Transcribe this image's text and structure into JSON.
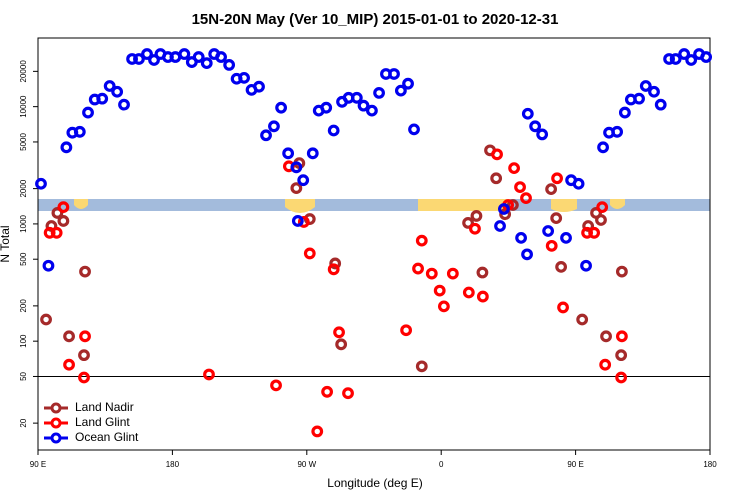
{
  "chart_data": {
    "type": "scatter",
    "title": "15N-20N May (Ver 10_MIP)   2015-01-01 to 2020-12-31",
    "x_label": "Longitude (deg E)",
    "y_label": "N Total",
    "log_y": true,
    "hline": 50,
    "legend": "bottom-left",
    "xlim": [
      90,
      540
    ],
    "ylim": [
      11.8,
      38500
    ],
    "xticks": [
      {
        "value": 90,
        "label": "90 E"
      },
      180,
      {
        "value": 270,
        "label": "90 W"
      },
      {
        "value": 360,
        "label": "0"
      },
      {
        "value": 450,
        "label": "90 E"
      },
      {
        "value": 540,
        "label": "180"
      }
    ],
    "yticks": [
      20,
      50,
      100,
      200,
      500,
      1000,
      2000,
      5000,
      10000,
      20000
    ],
    "series": [
      {
        "name": "Land Nadir",
        "color": "#a52a2a",
        "x": [
          95.4,
          99,
          103,
          107,
          110.8,
          120.8,
          121.5,
          263,
          265,
          272,
          289,
          293,
          347,
          378,
          383.6,
          387.6,
          392.7,
          396.8,
          402.8,
          408,
          433.6,
          437,
          440.3,
          454.4,
          458.4,
          463.7,
          467,
          470.4,
          480.5,
          481
        ],
        "values": [
          153,
          960,
          1240,
          1060,
          110,
          76,
          392,
          2020,
          3300,
          1100,
          460,
          94,
          61,
          1020,
          1170,
          385,
          4240,
          2450,
          1210,
          1450,
          1980,
          1120,
          430,
          153,
          960,
          1240,
          1080,
          110,
          76,
          392
        ]
      },
      {
        "name": "Land Glint",
        "color": "#ff0000",
        "x": [
          97.8,
          102.5,
          107,
          110.8,
          120.8,
          121.5,
          204.5,
          249.4,
          258,
          268,
          272,
          277,
          283.6,
          288,
          291.6,
          297.6,
          336.5,
          344.5,
          347,
          353.7,
          359,
          361.8,
          367.8,
          378.5,
          382.6,
          387.9,
          397.4,
          404.8,
          408.8,
          412.8,
          416.8,
          434,
          437.6,
          441.6,
          457.7,
          462.4,
          467.8,
          469.8,
          480.5,
          481
        ],
        "values": [
          840,
          840,
          1390,
          63,
          49,
          110,
          52,
          42,
          3100,
          1040,
          560,
          17,
          37,
          410,
          119,
          36,
          124,
          416,
          720,
          377,
          270,
          198,
          377,
          260,
          910,
          240,
          3920,
          1450,
          2990,
          2060,
          1660,
          650,
          2450,
          194,
          840,
          840,
          1390,
          63,
          49,
          110
        ]
      },
      {
        "name": "Ocean Glint",
        "color": "#0000ee",
        "x": [
          92,
          97,
          109,
          113,
          118,
          123.5,
          128,
          133,
          138,
          143,
          147.6,
          153,
          157.6,
          163,
          167.7,
          172,
          177,
          182,
          188,
          193,
          197.6,
          203,
          208,
          212.6,
          218,
          223,
          228,
          233,
          238,
          242.7,
          248,
          252.8,
          257.5,
          263,
          267.6,
          264,
          274,
          278,
          283,
          288,
          293.6,
          298,
          303.5,
          308,
          313.6,
          318.4,
          323,
          328.4,
          333,
          337.8,
          341.8,
          402,
          399.4,
          413.5,
          417.5,
          418,
          422.9,
          427.6,
          431.6,
          443.6,
          447,
          452,
          457,
          468.4,
          472.4,
          477.8,
          483,
          487,
          492.5,
          497,
          502.5,
          507,
          512.6,
          517,
          522.7,
          527.4,
          532.7,
          537.4
        ],
        "values": [
          2200,
          440,
          4500,
          6000,
          6100,
          8900,
          11500,
          11700,
          15000,
          13400,
          10400,
          25500,
          25500,
          28100,
          25000,
          28100,
          26500,
          26500,
          28100,
          24000,
          26500,
          23500,
          28100,
          26500,
          22700,
          17300,
          17600,
          13900,
          14800,
          5700,
          6800,
          9800,
          4000,
          3040,
          2360,
          1060,
          4000,
          9250,
          9800,
          6260,
          11000,
          11900,
          11900,
          10200,
          9250,
          13100,
          19000,
          19000,
          13700,
          15700,
          6400,
          1340,
          960,
          760,
          550,
          8700,
          6800,
          5800,
          870,
          760,
          2360,
          2200,
          440,
          4500,
          6000,
          6100,
          8900,
          11500,
          11700,
          15000,
          13400,
          10400,
          25500,
          25500,
          28100,
          25000,
          28100,
          26500
        ]
      }
    ]
  }
}
